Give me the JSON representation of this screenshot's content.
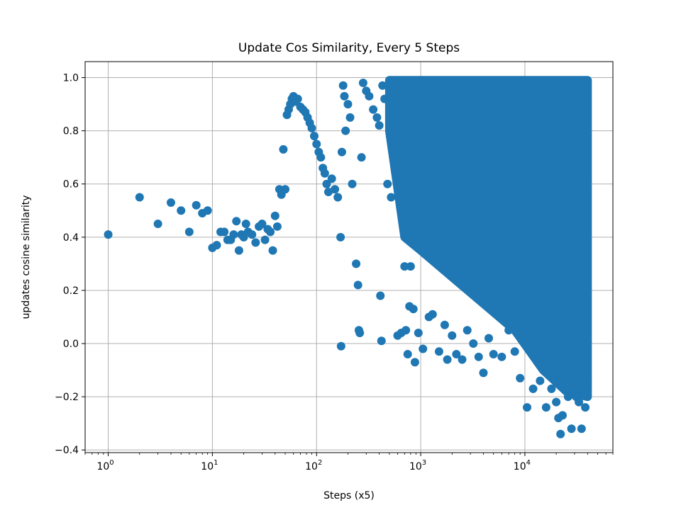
{
  "chart_data": {
    "type": "scatter",
    "title": "Update Cos Similarity, Every 5 Steps",
    "xlabel": "Steps (x5)",
    "ylabel": "updates cosine similarity",
    "xscale": "log",
    "xlim": [
      0.6,
      70000
    ],
    "ylim": [
      -0.41,
      1.06
    ],
    "grid": true,
    "marker_color": "#1f77b4",
    "x_ticks": [
      {
        "base": "10",
        "exp": "0",
        "value": 1
      },
      {
        "base": "10",
        "exp": "1",
        "value": 10
      },
      {
        "base": "10",
        "exp": "2",
        "value": 100
      },
      {
        "base": "10",
        "exp": "3",
        "value": 1000
      },
      {
        "base": "10",
        "exp": "4",
        "value": 10000
      }
    ],
    "y_ticks": [
      {
        "label": "−0.4",
        "value": -0.4
      },
      {
        "label": "−0.2",
        "value": -0.2
      },
      {
        "label": "0.0",
        "value": 0.0
      },
      {
        "label": "0.2",
        "value": 0.2
      },
      {
        "label": "0.4",
        "value": 0.4
      },
      {
        "label": "0.6",
        "value": 0.6
      },
      {
        "label": "0.8",
        "value": 0.8
      },
      {
        "label": "1.0",
        "value": 1.0
      }
    ],
    "points": [
      [
        1,
        0.41
      ],
      [
        2,
        0.55
      ],
      [
        3,
        0.45
      ],
      [
        4,
        0.53
      ],
      [
        5,
        0.5
      ],
      [
        6,
        0.42
      ],
      [
        7,
        0.52
      ],
      [
        8,
        0.49
      ],
      [
        9,
        0.5
      ],
      [
        10,
        0.36
      ],
      [
        11,
        0.37
      ],
      [
        12,
        0.42
      ],
      [
        13,
        0.42
      ],
      [
        14,
        0.39
      ],
      [
        15,
        0.39
      ],
      [
        16,
        0.41
      ],
      [
        17,
        0.46
      ],
      [
        18,
        0.35
      ],
      [
        19,
        0.41
      ],
      [
        20,
        0.4
      ],
      [
        21,
        0.45
      ],
      [
        22,
        0.42
      ],
      [
        24,
        0.41
      ],
      [
        26,
        0.38
      ],
      [
        28,
        0.44
      ],
      [
        30,
        0.45
      ],
      [
        32,
        0.39
      ],
      [
        34,
        0.43
      ],
      [
        36,
        0.42
      ],
      [
        38,
        0.35
      ],
      [
        40,
        0.48
      ],
      [
        42,
        0.44
      ],
      [
        44,
        0.58
      ],
      [
        46,
        0.56
      ],
      [
        48,
        0.73
      ],
      [
        50,
        0.58
      ],
      [
        52,
        0.86
      ],
      [
        54,
        0.88
      ],
      [
        56,
        0.9
      ],
      [
        58,
        0.92
      ],
      [
        60,
        0.93
      ],
      [
        63,
        0.91
      ],
      [
        66,
        0.92
      ],
      [
        70,
        0.89
      ],
      [
        74,
        0.88
      ],
      [
        78,
        0.87
      ],
      [
        82,
        0.85
      ],
      [
        86,
        0.83
      ],
      [
        90,
        0.81
      ],
      [
        95,
        0.78
      ],
      [
        100,
        0.75
      ],
      [
        105,
        0.72
      ],
      [
        110,
        0.7
      ],
      [
        115,
        0.66
      ],
      [
        120,
        0.64
      ],
      [
        125,
        0.6
      ],
      [
        130,
        0.57
      ],
      [
        140,
        0.62
      ],
      [
        150,
        0.58
      ],
      [
        160,
        0.55
      ],
      [
        170,
        0.4
      ],
      [
        172,
        -0.01
      ],
      [
        175,
        0.72
      ],
      [
        180,
        0.97
      ],
      [
        185,
        0.93
      ],
      [
        190,
        0.8
      ],
      [
        200,
        0.9
      ],
      [
        210,
        0.85
      ],
      [
        220,
        0.6
      ],
      [
        240,
        0.3
      ],
      [
        250,
        0.22
      ],
      [
        255,
        0.05
      ],
      [
        260,
        0.04
      ],
      [
        270,
        0.7
      ],
      [
        280,
        0.98
      ],
      [
        300,
        0.95
      ],
      [
        320,
        0.93
      ],
      [
        350,
        0.88
      ],
      [
        380,
        0.85
      ],
      [
        400,
        0.82
      ],
      [
        410,
        0.18
      ],
      [
        420,
        0.01
      ],
      [
        430,
        0.97
      ],
      [
        450,
        0.92
      ],
      [
        480,
        0.6
      ],
      [
        520,
        0.55
      ],
      [
        600,
        0.03
      ],
      [
        650,
        0.04
      ],
      [
        700,
        0.29
      ],
      [
        720,
        0.05
      ],
      [
        750,
        -0.04
      ],
      [
        780,
        0.14
      ],
      [
        800,
        0.29
      ],
      [
        850,
        0.13
      ],
      [
        880,
        -0.07
      ],
      [
        950,
        0.04
      ],
      [
        1050,
        -0.02
      ],
      [
        1200,
        0.1
      ],
      [
        1300,
        0.11
      ],
      [
        1500,
        -0.03
      ],
      [
        1700,
        0.07
      ],
      [
        1800,
        -0.06
      ],
      [
        2000,
        0.03
      ],
      [
        2200,
        -0.04
      ],
      [
        2500,
        -0.06
      ],
      [
        2800,
        0.05
      ],
      [
        3200,
        0.0
      ],
      [
        3600,
        -0.05
      ],
      [
        4000,
        -0.11
      ],
      [
        4500,
        0.02
      ],
      [
        5000,
        -0.04
      ],
      [
        6000,
        -0.05
      ],
      [
        7000,
        0.05
      ],
      [
        8000,
        -0.03
      ],
      [
        9000,
        -0.13
      ],
      [
        10500,
        -0.24
      ],
      [
        12000,
        -0.17
      ],
      [
        14000,
        -0.14
      ],
      [
        16000,
        -0.24
      ],
      [
        18000,
        -0.17
      ],
      [
        20000,
        -0.22
      ],
      [
        21000,
        -0.28
      ],
      [
        22000,
        -0.34
      ],
      [
        23000,
        -0.27
      ],
      [
        26000,
        -0.2
      ],
      [
        28000,
        -0.32
      ],
      [
        31000,
        -0.2
      ],
      [
        33000,
        -0.22
      ],
      [
        35000,
        -0.32
      ],
      [
        38000,
        -0.24
      ],
      [
        40000,
        -0.15
      ]
    ],
    "dense_region": {
      "description_x": [
        500,
        40000
      ],
      "y_top": 0.99,
      "y_bottom_by_x": [
        [
          500,
          0.8
        ],
        [
          700,
          0.4
        ],
        [
          1000,
          0.35
        ],
        [
          2000,
          0.25
        ],
        [
          4000,
          0.15
        ],
        [
          8000,
          0.05
        ],
        [
          15000,
          -0.1
        ],
        [
          25000,
          -0.18
        ],
        [
          40000,
          -0.2
        ]
      ]
    }
  }
}
